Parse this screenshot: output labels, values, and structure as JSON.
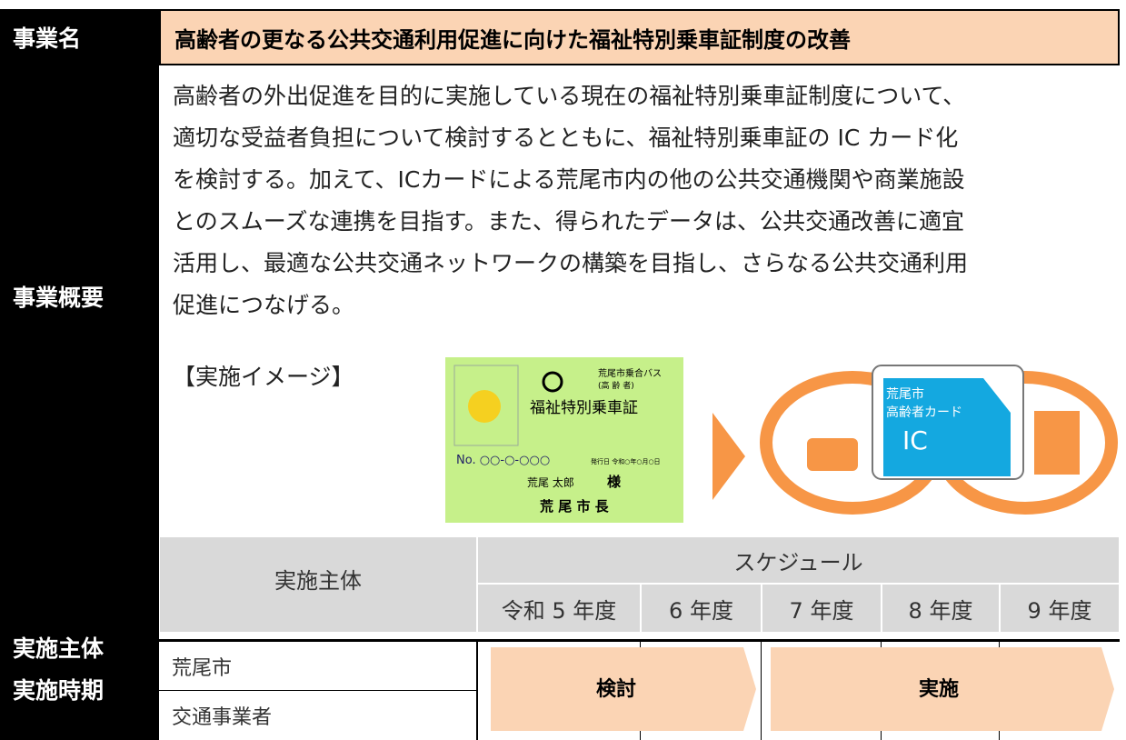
{
  "header": {
    "label": "事業名",
    "title": "高齢者の更なる公共交通利用促進に向けた福祉特別乗車証制度の改善"
  },
  "overview": {
    "label": "事業概要",
    "lines": [
      "高齢者の外出促進を目的に実施している現在の福祉特別乗車証制度について、",
      "適切な受益者負担について検討するとともに、福祉特別乗車証の IC カード化",
      "を検討する。加えて、ICカードによる荒尾市内の他の公共交通機関や商業施設",
      "とのスムーズな連携を目指す。また、得られたデータは、公共交通改善に適宜",
      "活用し、最適な公共交通ネットワークの構築を目指し、さらなる公共交通利用",
      "促進につなげる。"
    ],
    "image_label": "【実施イメージ】",
    "card": {
      "issuer": "荒尾市乗合バス",
      "type": "(高 齢 者)",
      "name": "福祉特別乗車証",
      "number": "No. ○○-○-○○○",
      "issued": "発行日 令和○年○月○日",
      "holder": "荒尾 太郎",
      "honorific": "様",
      "mayor": "荒 尾 市 長"
    },
    "ic_card": {
      "city": "荒尾市",
      "name": "高齢者カード",
      "ic": "IC"
    }
  },
  "schedule": {
    "label_lines": [
      "実施主体",
      "実施時期"
    ],
    "entity_header": "実施主体",
    "schedule_header": "スケジュール",
    "years": [
      "令和 5 年度",
      "6 年度",
      "7 年度",
      "8 年度",
      "9 年度"
    ],
    "entities": [
      "荒尾市",
      "交通事業者"
    ],
    "phases": [
      "検討",
      "実施"
    ]
  }
}
